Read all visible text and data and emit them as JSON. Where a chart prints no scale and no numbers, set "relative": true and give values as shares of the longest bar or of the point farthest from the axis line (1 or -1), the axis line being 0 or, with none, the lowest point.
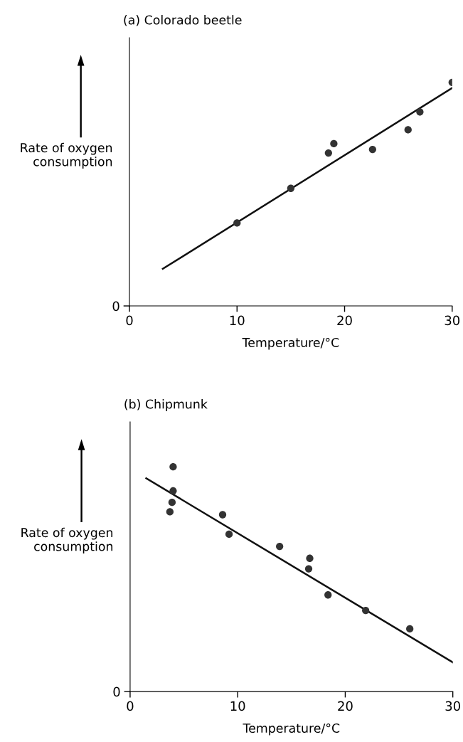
{
  "chart_data": [
    {
      "type": "scatter",
      "title": "(a) Colorado beetle",
      "xlabel": "Temperature/°C",
      "ylabel": "Rate of oxygen consumption",
      "relative": true,
      "xlim": [
        0,
        30
      ],
      "xticks": [
        0,
        10,
        20,
        30
      ],
      "annotations": [
        "0"
      ],
      "grid": false,
      "legend": false,
      "series": [
        {
          "marker": "circle",
          "color": "#333333",
          "x": [
            10.0,
            15.0,
            18.5,
            19.0,
            22.6,
            25.9,
            27.0,
            30.0
          ],
          "values": [
            0.371,
            0.526,
            0.684,
            0.726,
            0.7,
            0.788,
            0.868,
            1.0
          ]
        },
        {
          "type": "line",
          "marker": "none",
          "color": "#111111",
          "x": [
            3.1,
            30.0
          ],
          "values": [
            0.166,
            0.975
          ]
        }
      ]
    },
    {
      "type": "scatter",
      "title": "(b) Chipmunk",
      "xlabel": "Temperature/°C",
      "ylabel": "Rate of oxygen consumption",
      "relative": true,
      "xlim": [
        0,
        30
      ],
      "xticks": [
        0,
        10,
        20,
        30
      ],
      "annotations": [
        "0"
      ],
      "grid": false,
      "legend": false,
      "series": [
        {
          "marker": "circle",
          "color": "#333333",
          "x": [
            4.0,
            4.0,
            3.9,
            3.7,
            8.6,
            9.2,
            13.9,
            16.7,
            16.6,
            18.4,
            21.9,
            26.0
          ],
          "values": [
            1.0,
            0.893,
            0.842,
            0.8,
            0.787,
            0.7,
            0.646,
            0.593,
            0.546,
            0.43,
            0.361,
            0.279
          ]
        },
        {
          "type": "line",
          "marker": "none",
          "color": "#111111",
          "x": [
            1.5,
            30.0
          ],
          "values": [
            0.949,
            0.13
          ]
        }
      ]
    }
  ]
}
